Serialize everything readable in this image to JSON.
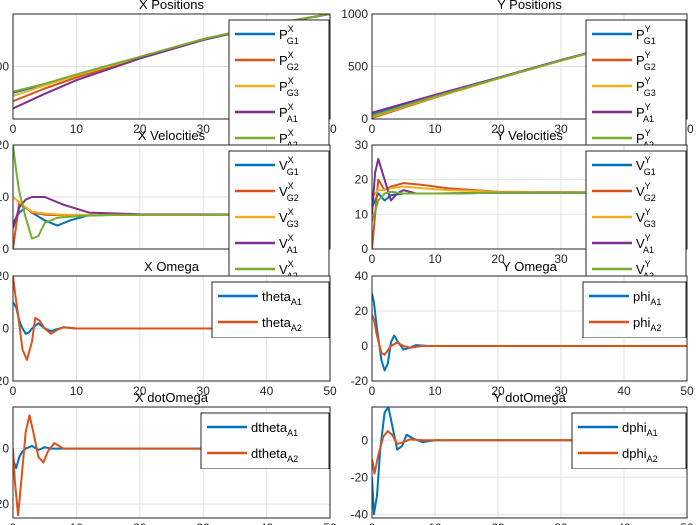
{
  "colors": {
    "blue": "#0072BD",
    "orange": "#D95319",
    "yellow": "#EDB120",
    "purple": "#7E2F8E",
    "green": "#77AC30",
    "grid": "#e2e2e2",
    "axis": "#262626"
  },
  "chart_data": [
    {
      "type": "line",
      "title": "X Positions",
      "xlim": [
        0,
        50
      ],
      "ylim": [
        0,
        1000
      ],
      "xticks": [
        "0",
        "10",
        "20",
        "30",
        "40",
        "50"
      ],
      "yticks": [
        {
          "v": 500,
          "label": "500"
        }
      ],
      "grid": true,
      "legend_placement": "top-right",
      "series": [
        {
          "name": "P^X_G1",
          "base": "P",
          "sup": "X",
          "sub": "G1",
          "color": "blue",
          "x": [
            0,
            5,
            10,
            20,
            30,
            40,
            50
          ],
          "y": [
            250,
            330,
            420,
            590,
            760,
            895,
            1000
          ]
        },
        {
          "name": "P^X_G2",
          "base": "P",
          "sup": "X",
          "sub": "G2",
          "color": "orange",
          "x": [
            0,
            5,
            10,
            20,
            30,
            40,
            50
          ],
          "y": [
            170,
            290,
            395,
            580,
            755,
            892,
            1000
          ]
        },
        {
          "name": "P^X_G3",
          "base": "P",
          "sup": "X",
          "sub": "G3",
          "color": "yellow",
          "x": [
            0,
            5,
            10,
            20,
            30,
            40,
            50
          ],
          "y": [
            220,
            320,
            415,
            588,
            758,
            894,
            1000
          ]
        },
        {
          "name": "P^X_A1",
          "base": "P",
          "sup": "X",
          "sub": "A1",
          "color": "purple",
          "x": [
            0,
            5,
            10,
            20,
            30,
            40,
            50
          ],
          "y": [
            100,
            240,
            370,
            575,
            752,
            890,
            1000
          ]
        },
        {
          "name": "P^X_A2",
          "base": "P",
          "sup": "X",
          "sub": "A2",
          "color": "green",
          "x": [
            0,
            5,
            10,
            20,
            30,
            40,
            50
          ],
          "y": [
            260,
            335,
            425,
            592,
            761,
            896,
            1000
          ]
        }
      ]
    },
    {
      "type": "line",
      "title": "Y Positions",
      "xlim": [
        0,
        50
      ],
      "ylim": [
        0,
        1000
      ],
      "xticks": [
        "0",
        "10",
        "20",
        "30",
        "40",
        "50"
      ],
      "yticks": [
        {
          "v": 0,
          "label": "0"
        },
        {
          "v": 500,
          "label": "500"
        },
        {
          "v": 1000,
          "label": "1000"
        }
      ],
      "grid": true,
      "legend_placement": "top-right",
      "series": [
        {
          "name": "P^Y_G1",
          "base": "P",
          "sup": "Y",
          "sub": "G1",
          "color": "blue",
          "x": [
            0,
            10,
            20,
            30,
            40,
            50
          ],
          "y": [
            40,
            220,
            390,
            560,
            720,
            880
          ]
        },
        {
          "name": "P^Y_G2",
          "base": "P",
          "sup": "Y",
          "sub": "G2",
          "color": "orange",
          "x": [
            0,
            10,
            20,
            30,
            40,
            50
          ],
          "y": [
            10,
            205,
            385,
            555,
            718,
            878
          ]
        },
        {
          "name": "P^Y_G3",
          "base": "P",
          "sup": "Y",
          "sub": "G3",
          "color": "yellow",
          "x": [
            0,
            10,
            20,
            30,
            40,
            50
          ],
          "y": [
            20,
            210,
            387,
            557,
            719,
            879
          ]
        },
        {
          "name": "P^Y_A1",
          "base": "P",
          "sup": "Y",
          "sub": "A1",
          "color": "purple",
          "x": [
            0,
            10,
            20,
            30,
            40,
            50
          ],
          "y": [
            60,
            230,
            393,
            562,
            721,
            881
          ]
        },
        {
          "name": "P^Y_A2",
          "base": "P",
          "sup": "Y",
          "sub": "A2",
          "color": "green",
          "x": [
            0,
            10,
            20,
            30,
            40,
            50
          ],
          "y": [
            30,
            215,
            388,
            558,
            720,
            880
          ]
        }
      ]
    },
    {
      "type": "line",
      "title": "X Velocities",
      "xlim": [
        0,
        50
      ],
      "ylim": [
        0,
        20
      ],
      "xticks": [],
      "yticks": [
        {
          "v": 0,
          "label": "0"
        },
        {
          "v": 10,
          "label": "10"
        },
        {
          "v": 20,
          "label": "20"
        }
      ],
      "grid": true,
      "legend_placement": "top-right",
      "series": [
        {
          "name": "V^X_G1",
          "base": "V",
          "sup": "X",
          "sub": "G1",
          "color": "blue",
          "x": [
            0,
            1,
            2,
            3,
            5,
            7,
            9,
            12,
            20,
            50
          ],
          "y": [
            5,
            7,
            8,
            7,
            5.5,
            4.5,
            5.5,
            6.5,
            6.6,
            6.6
          ]
        },
        {
          "name": "V^X_G2",
          "base": "V",
          "sup": "X",
          "sub": "G2",
          "color": "orange",
          "x": [
            0,
            1,
            2,
            3,
            5,
            8,
            12,
            20,
            50
          ],
          "y": [
            0,
            9,
            8,
            7,
            6.6,
            6.5,
            6.5,
            6.6,
            6.6
          ]
        },
        {
          "name": "V^X_G3",
          "base": "V",
          "sup": "X",
          "sub": "G3",
          "color": "yellow",
          "x": [
            0,
            1,
            2,
            3,
            5,
            8,
            12,
            20,
            50
          ],
          "y": [
            10,
            9,
            8,
            7.2,
            6.8,
            6.6,
            6.6,
            6.6,
            6.6
          ]
        },
        {
          "name": "V^X_A1",
          "base": "V",
          "sup": "X",
          "sub": "A1",
          "color": "purple",
          "x": [
            0,
            1,
            2,
            3,
            5,
            8,
            12,
            20,
            50
          ],
          "y": [
            4,
            8,
            9.5,
            10,
            10,
            8.5,
            7,
            6.7,
            6.6
          ]
        },
        {
          "name": "V^X_A2",
          "base": "V",
          "sup": "X",
          "sub": "A2",
          "color": "green",
          "x": [
            0,
            0.5,
            1,
            2,
            3,
            4,
            5,
            7,
            10,
            15,
            50
          ],
          "y": [
            20,
            15,
            11,
            6,
            2,
            2.5,
            5,
            6,
            6.3,
            6.6,
            6.6
          ]
        }
      ]
    },
    {
      "type": "line",
      "title": "Y Velocities",
      "xlim": [
        0,
        50
      ],
      "ylim": [
        0,
        30
      ],
      "xticks": [
        "0",
        "10",
        "20",
        "30"
      ],
      "yticks": [
        {
          "v": 0,
          "label": "0"
        },
        {
          "v": 10,
          "label": "10"
        },
        {
          "v": 20,
          "label": "20"
        },
        {
          "v": 30,
          "label": "30"
        }
      ],
      "grid": true,
      "legend_placement": "top-right",
      "series": [
        {
          "name": "V^Y_G1",
          "base": "V",
          "sup": "Y",
          "sub": "G1",
          "color": "blue",
          "x": [
            0,
            1,
            2,
            3,
            5,
            8,
            12,
            20,
            50
          ],
          "y": [
            12,
            16,
            14,
            15.5,
            16,
            16,
            16,
            16.2,
            16.2
          ]
        },
        {
          "name": "V^Y_G2",
          "base": "V",
          "sup": "Y",
          "sub": "G2",
          "color": "orange",
          "x": [
            0,
            1,
            2,
            3,
            5,
            8,
            12,
            20,
            50
          ],
          "y": [
            0,
            20,
            17,
            18,
            19,
            18.5,
            17.5,
            16.5,
            16.2
          ]
        },
        {
          "name": "V^Y_G3",
          "base": "V",
          "sup": "Y",
          "sub": "G3",
          "color": "yellow",
          "x": [
            0,
            1,
            2,
            3,
            5,
            8,
            12,
            20,
            50
          ],
          "y": [
            15,
            17,
            17,
            17.5,
            18,
            17.5,
            17,
            16.5,
            16.2
          ]
        },
        {
          "name": "V^Y_A1",
          "base": "V",
          "sup": "Y",
          "sub": "A1",
          "color": "purple",
          "x": [
            0,
            0.5,
            1,
            2,
            3,
            4,
            5,
            7,
            10,
            20,
            50
          ],
          "y": [
            10,
            22,
            26,
            20,
            14,
            16,
            17,
            16,
            16,
            16.2,
            16.2
          ]
        },
        {
          "name": "V^Y_A2",
          "base": "V",
          "sup": "Y",
          "sub": "A2",
          "color": "green",
          "x": [
            0,
            1,
            2,
            3,
            5,
            8,
            12,
            20,
            50
          ],
          "y": [
            8,
            14,
            16,
            16.5,
            16,
            16,
            16,
            16.2,
            16.2
          ]
        }
      ]
    },
    {
      "type": "line",
      "title": "X Omega",
      "xlim": [
        0,
        50
      ],
      "ylim": [
        -20,
        20
      ],
      "xticks": [
        "0",
        "10",
        "20",
        "30",
        "40",
        "50"
      ],
      "yticks": [
        {
          "v": -20,
          "label": "-20"
        },
        {
          "v": 0,
          "label": "0"
        },
        {
          "v": 20,
          "label": "20"
        }
      ],
      "grid": true,
      "legend_placement": "top-right",
      "series": [
        {
          "name": "theta_A1",
          "base": "theta",
          "sup": "",
          "sub": "A1",
          "color": "blue",
          "x": [
            0,
            0.5,
            1,
            1.5,
            2,
            2.5,
            3,
            4,
            5,
            6,
            8,
            10,
            15,
            50
          ],
          "y": [
            10,
            8,
            3,
            0,
            -2,
            -1.5,
            0,
            2,
            0,
            -1,
            0.5,
            0,
            0,
            0
          ]
        },
        {
          "name": "theta_A2",
          "base": "theta",
          "sup": "",
          "sub": "A2",
          "color": "orange",
          "x": [
            0,
            0.3,
            0.8,
            1.5,
            2.2,
            3,
            3.5,
            4.2,
            5,
            6,
            7,
            8,
            10,
            15,
            20,
            50
          ],
          "y": [
            20,
            14,
            5,
            -8,
            -12,
            -5,
            4,
            3,
            0,
            -2,
            -0.5,
            0.5,
            0,
            0,
            0,
            0
          ]
        }
      ]
    },
    {
      "type": "line",
      "title": "Y Omega",
      "xlim": [
        0,
        50
      ],
      "ylim": [
        -20,
        40
      ],
      "xticks": [
        "0",
        "10",
        "20",
        "30",
        "40",
        "50"
      ],
      "yticks": [
        {
          "v": -20,
          "label": "-20"
        },
        {
          "v": 0,
          "label": "0"
        },
        {
          "v": 20,
          "label": "20"
        },
        {
          "v": 40,
          "label": "40"
        }
      ],
      "grid": true,
      "legend_placement": "top-right",
      "series": [
        {
          "name": "phi_A1",
          "base": "phi",
          "sup": "",
          "sub": "A1",
          "color": "blue",
          "x": [
            0,
            0.3,
            0.8,
            1.5,
            2,
            2.5,
            3,
            3.5,
            4,
            5,
            6,
            7,
            9,
            12,
            50
          ],
          "y": [
            30,
            25,
            10,
            -8,
            -14,
            -10,
            2,
            6,
            3,
            -2,
            -1,
            0.5,
            0,
            0,
            0
          ]
        },
        {
          "name": "phi_A2",
          "base": "phi",
          "sup": "",
          "sub": "A2",
          "color": "orange",
          "x": [
            0,
            0.3,
            0.8,
            1.5,
            2,
            3,
            4,
            5,
            6,
            8,
            10,
            50
          ],
          "y": [
            18,
            15,
            6,
            -4,
            -5,
            0,
            2,
            0,
            -1,
            0,
            0,
            0
          ]
        }
      ]
    },
    {
      "type": "line",
      "title": "X dotOmega",
      "xlim": [
        0,
        50
      ],
      "ylim": [
        -25,
        15
      ],
      "xticks": [
        "0",
        "10",
        "20",
        "30",
        "40",
        "50"
      ],
      "yticks": [
        {
          "v": -20,
          "label": "-20"
        },
        {
          "v": 0,
          "label": "0"
        }
      ],
      "grid": true,
      "legend_placement": "top-right",
      "series": [
        {
          "name": "dtheta_A1",
          "base": "dtheta",
          "sup": "",
          "sub": "A1",
          "color": "blue",
          "x": [
            0,
            0.5,
            1,
            1.5,
            2,
            3,
            4,
            5,
            6,
            8,
            10,
            50
          ],
          "y": [
            -4,
            -7,
            -3,
            -1,
            0,
            1,
            -0.5,
            0.5,
            0,
            0,
            0,
            0
          ]
        },
        {
          "name": "dtheta_A2",
          "base": "dtheta",
          "sup": "",
          "sub": "A2",
          "color": "orange",
          "x": [
            0,
            0.3,
            0.8,
            1.3,
            2,
            2.6,
            3.2,
            4,
            4.8,
            5.5,
            6.5,
            8,
            10,
            15,
            50
          ],
          "y": [
            0,
            -12,
            -24,
            -12,
            6,
            12,
            6,
            -3,
            -5,
            -1,
            2,
            0,
            0,
            0,
            0
          ]
        }
      ]
    },
    {
      "type": "line",
      "title": "Y dotOmega",
      "xlim": [
        0,
        50
      ],
      "ylim": [
        -42,
        18
      ],
      "xticks": [
        "0",
        "10",
        "20",
        "30",
        "40",
        "50"
      ],
      "yticks": [
        {
          "v": -40,
          "label": "-40"
        },
        {
          "v": -20,
          "label": "-20"
        },
        {
          "v": 0,
          "label": "0"
        }
      ],
      "grid": true,
      "legend_placement": "top-right",
      "series": [
        {
          "name": "dphi_A1",
          "base": "dphi",
          "sup": "",
          "sub": "A1",
          "color": "blue",
          "x": [
            0,
            0.3,
            0.8,
            1.3,
            2,
            2.6,
            3.2,
            4,
            4.8,
            5.5,
            6.5,
            8,
            10,
            15,
            50
          ],
          "y": [
            -20,
            -40,
            -30,
            -5,
            15,
            18,
            8,
            -5,
            -3,
            3,
            1,
            -1,
            0,
            0,
            0
          ]
        },
        {
          "name": "dphi_A2",
          "base": "dphi",
          "sup": "",
          "sub": "A2",
          "color": "orange",
          "x": [
            0,
            0.4,
            1,
            1.8,
            2.5,
            3.2,
            4,
            5,
            6,
            8,
            10,
            50
          ],
          "y": [
            -10,
            -18,
            -8,
            2,
            5,
            3,
            -2,
            -1,
            0.5,
            0,
            0,
            0
          ]
        }
      ]
    }
  ]
}
